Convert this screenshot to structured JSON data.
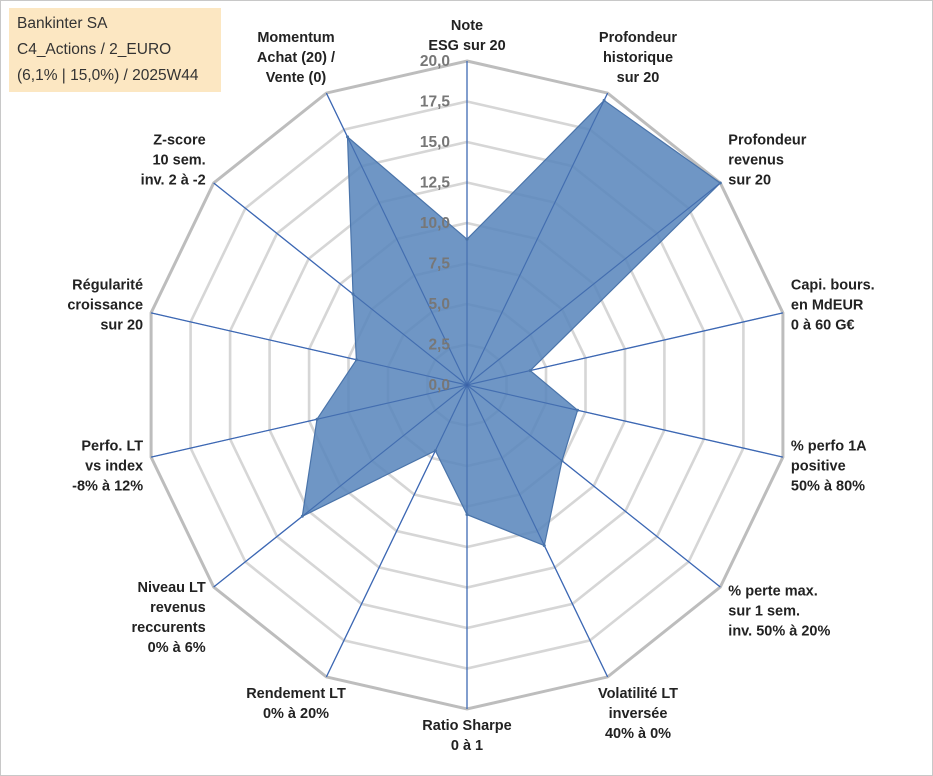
{
  "info_box": {
    "line1": "Bankinter SA",
    "line2": "C4_Actions / 2_EURO",
    "line3": "(6,1% | 15,0%) / 2025W44"
  },
  "colors": {
    "fill": "#5b87bd",
    "stroke": "#4a74aa",
    "axis": "#4472c4",
    "grid_outer": "#bdbdbd",
    "grid_inner": "#d6d6d6"
  },
  "chart_data": {
    "type": "radar",
    "title": "",
    "rlim": [
      0,
      20
    ],
    "ticks": [
      "0,0",
      "2,5",
      "5,0",
      "7,5",
      "10,0",
      "12,5",
      "15,0",
      "17,5",
      "20,0"
    ],
    "grid_levels": [
      2.5,
      5,
      7.5,
      10,
      12.5,
      15,
      17.5,
      20
    ],
    "axes": [
      {
        "label": [
          "Note",
          "ESG sur 20"
        ],
        "value": 9.0
      },
      {
        "label": [
          "Profondeur",
          "historique",
          "sur 20"
        ],
        "value": 19.5
      },
      {
        "label": [
          "Profondeur",
          "revenus",
          "sur 20"
        ],
        "value": 20.0
      },
      {
        "label": [
          "Capi. bours.",
          "en MdEUR",
          "0 à 60 G€"
        ],
        "value": 4.0
      },
      {
        "label": [
          "% perfo 1A",
          "positive",
          "50% à 80%"
        ],
        "value": 7.0
      },
      {
        "label": [
          "% perte max.",
          "sur 1 sem.",
          "inv. 50% à 20%"
        ],
        "value": 7.5
      },
      {
        "label": [
          "Volatilité LT",
          "inversée",
          "40% à 0%"
        ],
        "value": 11.0
      },
      {
        "label": [
          "Ratio Sharpe",
          "0 à 1"
        ],
        "value": 8.0
      },
      {
        "label": [
          "Rendement LT",
          "0% à 20%"
        ],
        "value": 4.5
      },
      {
        "label": [
          "Niveau LT",
          "revenus",
          "reccurents",
          "0% à 6%"
        ],
        "value": 13.0
      },
      {
        "label": [
          "Perfo. LT",
          "vs index",
          "-8% à 12%"
        ],
        "value": 9.5
      },
      {
        "label": [
          "Régularité",
          "croissance",
          "sur 20"
        ],
        "value": 7.0
      },
      {
        "label": [
          "Z-score",
          "10 sem.",
          "inv. 2 à -2"
        ],
        "value": 9.0
      },
      {
        "label": [
          "Momentum",
          "Achat (20) /",
          "Vente (0)"
        ],
        "value": 17.0
      }
    ]
  }
}
